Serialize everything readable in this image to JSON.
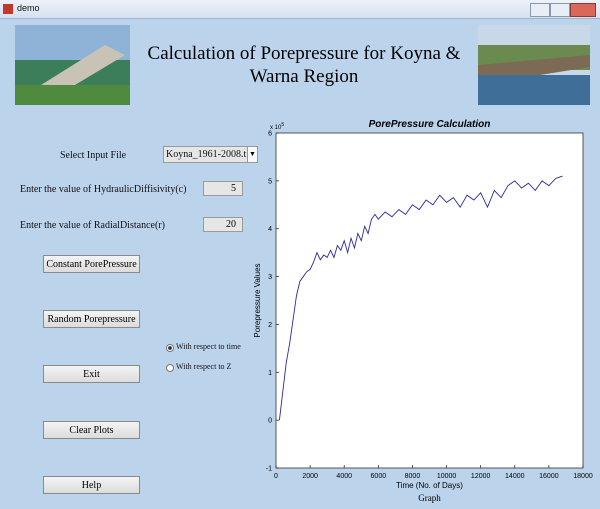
{
  "window": {
    "title": "demo"
  },
  "header": {
    "lines": [
      "Calculation of Porepressure for Koyna &",
      "Warna Region"
    ]
  },
  "controls": {
    "select_label": "Select Input File",
    "select_value": "Koyna_1961-2008.t...",
    "diffusivity_label": "Enter the value of HydraulicDiffisivity(c)",
    "diffusivity_value": "5",
    "distance_label": "Enter the value of RadialDistance(r)",
    "distance_value": "20",
    "buttons": [
      "Constant PorePressure",
      "Random Porepressure",
      "Exit",
      "Clear Plots",
      "Help"
    ],
    "radios": [
      "With respect to time",
      "With respect to Z"
    ],
    "radio_selected": 0
  },
  "chart_data": {
    "type": "line",
    "title": "PorePressure Calculation",
    "x_label": "Time (No. of Days)",
    "y_label": "Porepressure Values",
    "y_multiplier": {
      "base": "x 10",
      "exponent": "5"
    },
    "caption": "Graph",
    "xlim": [
      0,
      18000
    ],
    "ylim": [
      -1,
      6
    ],
    "xticks": [
      0,
      2000,
      4000,
      6000,
      8000,
      10000,
      12000,
      14000,
      16000,
      18000
    ],
    "yticks": [
      -1,
      0,
      1,
      2,
      3,
      4,
      5,
      6
    ],
    "series": [
      {
        "name": "Porepressure",
        "color": "#2a2a9a",
        "x": [
          200,
          400,
          600,
          800,
          1000,
          1200,
          1400,
          1600,
          1800,
          2000,
          2200,
          2400,
          2600,
          2800,
          3000,
          3200,
          3400,
          3600,
          3800,
          4000,
          4200,
          4400,
          4600,
          4800,
          5000,
          5200,
          5400,
          5600,
          5800,
          6000,
          6400,
          6800,
          7200,
          7600,
          8000,
          8400,
          8800,
          9200,
          9600,
          10000,
          10400,
          10800,
          11200,
          11600,
          12000,
          12400,
          12800,
          13200,
          13600,
          14000,
          14400,
          14800,
          15200,
          15600,
          16000,
          16400,
          16800
        ],
        "values": [
          0.0,
          0.6,
          1.2,
          1.6,
          2.1,
          2.6,
          2.9,
          3.0,
          3.1,
          3.15,
          3.3,
          3.5,
          3.35,
          3.45,
          3.4,
          3.55,
          3.4,
          3.65,
          3.55,
          3.75,
          3.5,
          3.8,
          3.6,
          3.9,
          3.75,
          4.05,
          3.9,
          4.2,
          4.3,
          4.2,
          4.35,
          4.25,
          4.4,
          4.3,
          4.5,
          4.4,
          4.6,
          4.5,
          4.7,
          4.55,
          4.65,
          4.45,
          4.7,
          4.6,
          4.75,
          4.45,
          4.8,
          4.65,
          4.9,
          5.0,
          4.85,
          4.95,
          4.8,
          5.0,
          4.9,
          5.05,
          5.1
        ]
      }
    ]
  }
}
